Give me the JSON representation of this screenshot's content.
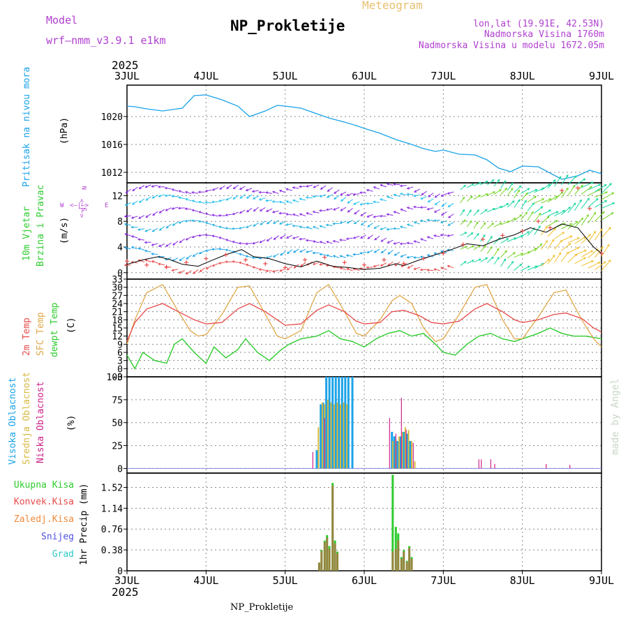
{
  "header": {
    "model_label": "Model",
    "model_name": "wrf–nmm_v3.9.1 e1km",
    "meteogram": "Meteogram",
    "station": "NP_Prokletije",
    "lonlat": "lon,lat (19.91E, 42.53N)",
    "elevation": "Nadmorska Visina 1760m",
    "model_elevation": "Nadmorska Visina u modelu 1672.05m",
    "footer_station": "NP_Prokletije",
    "credit": "made by Angel"
  },
  "time_axis": {
    "year": "2025",
    "day_labels": [
      "3JUL",
      "4JUL",
      "5JUL",
      "6JUL",
      "7JUL",
      "8JUL",
      "9JUL"
    ]
  },
  "panels": {
    "pressure": {
      "label": "Pritisak na nivou mora",
      "unit": "(hPa)"
    },
    "wind": {
      "label1": "10m Vjetar",
      "label2": "Brzina i Pravac",
      "unit": "(m/s)",
      "compass_n": "N",
      "compass_s": "S",
      "compass_w": "W",
      "compass_e": "E",
      "compass_row1": "∧",
      "compass_row2": "<–|–>",
      "compass_row3": "∨"
    },
    "temp": {
      "label1": "2m Temp",
      "label2": "SFC Temp",
      "label3": "dewpt Temp",
      "unit": "(C)"
    },
    "cloud": {
      "label1": "Visoka Oblacnost",
      "label2": "Srednja Oblacnost",
      "label3": "Niska Oblacnost",
      "unit": "(%)"
    },
    "precip": {
      "label1": "Ukupna Kisa",
      "label2": "Konvek.Kisa",
      "label3": "Zaledj.Kisa",
      "label4": "Snijeg",
      "label5": "Grad",
      "unit": "1hr Precip (mm)"
    }
  },
  "colors": {
    "pressure": "#1aa3e8",
    "t2m": "#e84a4a",
    "sfc": "#e0a84a",
    "dewpt": "#2ecc2e",
    "high_cloud": "#1aa3e8",
    "mid_cloud": "#d8b840",
    "low_cloud": "#d0208a",
    "total_rain": "#2ecc2e",
    "conv_rain": "#e84a4a",
    "frz_rain": "#f08a3a",
    "snow": "#5050e0",
    "hail": "#30c8c8",
    "model_label": "#b040d0",
    "meteogram": "#e8c070",
    "wind_label1": "#2ecc2e",
    "wind_label2": "#2ecc2e",
    "wind_unit": "#000000"
  },
  "chart_data": [
    {
      "type": "line",
      "title": "Pritisak na nivou mora",
      "ylabel": "(hPa)",
      "ylim": [
        1010.5,
        1024.5
      ],
      "yticks": [
        1012,
        1016,
        1020
      ],
      "x_days": [
        0,
        0.1,
        0.25,
        0.45,
        0.7,
        0.85,
        1.0,
        1.2,
        1.4,
        1.55,
        1.75,
        1.9,
        2.0,
        2.2,
        2.35,
        2.55,
        2.75,
        2.9,
        3.0,
        3.2,
        3.4,
        3.6,
        3.75,
        3.9,
        4.0,
        4.2,
        4.4,
        4.55,
        4.7,
        4.85,
        5.0,
        5.2,
        5.35,
        5.5,
        5.7,
        5.85,
        6.0
      ],
      "values": [
        1021.5,
        1021.4,
        1021.1,
        1020.8,
        1021.2,
        1023.0,
        1023.1,
        1022.4,
        1021.5,
        1020.0,
        1020.8,
        1021.6,
        1021.5,
        1021.2,
        1020.6,
        1019.8,
        1019.2,
        1018.7,
        1018.3,
        1017.6,
        1016.7,
        1016.0,
        1015.4,
        1015.0,
        1015.2,
        1014.6,
        1014.5,
        1013.8,
        1012.6,
        1012.1,
        1012.9,
        1012.8,
        1011.9,
        1011.0,
        1011.5,
        1012.3,
        1011.8
      ]
    },
    {
      "type": "line",
      "title": "10m Vjetar Brzina i Pravac",
      "ylabel": "(m/s)",
      "ylim": [
        -1,
        14
      ],
      "yticks": [
        0,
        4,
        8,
        12
      ],
      "series": [
        {
          "x_days": [
            0,
            0.2,
            0.4,
            0.55,
            0.7,
            0.9,
            1.05,
            1.25,
            1.45,
            1.6,
            1.8,
            2.0,
            2.2,
            2.4,
            2.6,
            2.8,
            3.0,
            3.2,
            3.4,
            3.5,
            3.7,
            3.9,
            4.1,
            4.3,
            4.5,
            4.7,
            4.9,
            5.1,
            5.3,
            5.5,
            5.7,
            5.9,
            6.0
          ],
          "values": [
            1.3,
            2.0,
            2.5,
            2.0,
            1.3,
            1.0,
            1.8,
            2.8,
            3.6,
            2.5,
            2.2,
            1.4,
            0.9,
            1.8,
            1.0,
            0.8,
            0.5,
            0.7,
            1.4,
            1.1,
            2.0,
            2.8,
            3.6,
            4.5,
            4.2,
            5.2,
            5.9,
            7.0,
            6.3,
            7.6,
            7.0,
            4.0,
            3.0
          ]
        },
        {
          "x_days": [
            0,
            0.25,
            0.5,
            0.75,
            1.0,
            1.25,
            1.5,
            1.75,
            2.0,
            2.25,
            2.5,
            2.75,
            3.0,
            3.25,
            3.5,
            3.75,
            4.0,
            4.25,
            4.5,
            4.75,
            5.0,
            5.2,
            5.35,
            5.5,
            5.7,
            5.85,
            6.0
          ],
          "values": [
            1.8,
            1.2,
            0.9,
            1.6,
            2.2,
            2.8,
            2.0,
            1.4,
            0.8,
            2.0,
            2.4,
            1.6,
            1.2,
            2.0,
            1.4,
            2.2,
            3.0,
            4.4,
            5.2,
            5.8,
            6.5,
            8.0,
            7.0,
            12.8,
            13.2,
            10.0,
            3.0
          ]
        }
      ]
    },
    {
      "type": "line",
      "title": "2m Temp / SFC Temp / dewpt Temp",
      "ylabel": "(C)",
      "ylim": [
        -3,
        33
      ],
      "yticks": [
        -3,
        0,
        3,
        6,
        9,
        12,
        15,
        18,
        21,
        24,
        27,
        30,
        33
      ],
      "series": [
        {
          "name": "2m Temp",
          "x_days": [
            0,
            0.1,
            0.25,
            0.45,
            0.65,
            0.85,
            1.0,
            1.2,
            1.4,
            1.55,
            1.75,
            1.95,
            2.0,
            2.2,
            2.4,
            2.55,
            2.75,
            2.9,
            3.0,
            3.2,
            3.35,
            3.5,
            3.7,
            3.85,
            4.0,
            4.2,
            4.4,
            4.55,
            4.75,
            4.9,
            5.0,
            5.2,
            5.4,
            5.55,
            5.75,
            5.9,
            6.0
          ],
          "values": [
            10,
            17,
            22,
            24,
            21,
            18,
            16.5,
            17,
            22,
            24,
            21,
            17,
            16,
            16.5,
            21.5,
            23.5,
            21,
            17.5,
            16.5,
            17,
            21,
            21.5,
            19.5,
            17,
            16.5,
            17.5,
            22,
            24,
            21,
            18,
            17,
            18,
            20,
            20.5,
            18.5,
            15,
            13.5
          ]
        },
        {
          "name": "SFC Temp",
          "x_days": [
            0,
            0.1,
            0.25,
            0.45,
            0.65,
            0.8,
            0.9,
            1.0,
            1.2,
            1.4,
            1.55,
            1.75,
            1.9,
            2.0,
            2.2,
            2.4,
            2.55,
            2.75,
            2.9,
            3.0,
            3.2,
            3.35,
            3.45,
            3.6,
            3.75,
            3.9,
            4.0,
            4.2,
            4.4,
            4.55,
            4.75,
            4.9,
            5.0,
            5.2,
            5.4,
            5.55,
            5.75,
            5.9,
            6.0
          ],
          "values": [
            9,
            18,
            28,
            31,
            21,
            14,
            12,
            12.5,
            20,
            30,
            30.5,
            20,
            12,
            11,
            14,
            28,
            31,
            21,
            13,
            12,
            18,
            25,
            27,
            24,
            15,
            10,
            11,
            20,
            30,
            31,
            18,
            11,
            11,
            19,
            28,
            29,
            18,
            11,
            8
          ]
        },
        {
          "name": "dewpt Temp",
          "x_days": [
            0,
            0.1,
            0.2,
            0.35,
            0.5,
            0.6,
            0.7,
            0.85,
            1.0,
            1.1,
            1.25,
            1.4,
            1.5,
            1.65,
            1.8,
            1.95,
            2.05,
            2.2,
            2.4,
            2.55,
            2.7,
            2.85,
            3.0,
            3.15,
            3.3,
            3.45,
            3.6,
            3.75,
            3.9,
            4.0,
            4.15,
            4.3,
            4.45,
            4.6,
            4.75,
            4.9,
            5.0,
            5.2,
            5.35,
            5.5,
            5.65,
            5.8,
            6.0
          ],
          "values": [
            5,
            0,
            6,
            3,
            2,
            9,
            11,
            6,
            2,
            8,
            4,
            7,
            11,
            6,
            3,
            7,
            9,
            11,
            12,
            14,
            11,
            10,
            8,
            11,
            13,
            14,
            12,
            13,
            9,
            6,
            5,
            9,
            12,
            13,
            11,
            10,
            11,
            13,
            15,
            13,
            12,
            12,
            11
          ]
        }
      ]
    },
    {
      "type": "bar",
      "title": "Visoka / Srednja / Niska Oblacnost",
      "ylabel": "(%)",
      "ylim": [
        -5,
        100
      ],
      "yticks": [
        0,
        25,
        50,
        75,
        100
      ],
      "series": [
        {
          "name": "Visoka Oblacnost",
          "x_days": [
            2.4,
            2.45,
            2.48,
            2.52,
            2.56,
            2.6,
            2.64,
            2.68,
            2.72,
            2.76,
            2.8,
            2.85,
            3.35,
            3.38,
            3.42,
            3.46,
            3.5,
            3.54,
            3.58
          ],
          "values": [
            20,
            70,
            72,
            100,
            100,
            100,
            100,
            100,
            100,
            100,
            100,
            100,
            40,
            35,
            30,
            35,
            40,
            38,
            30
          ]
        },
        {
          "name": "Srednja Oblacnost",
          "x_days": [
            2.42,
            2.47,
            2.5,
            2.54,
            2.58,
            2.62,
            2.66,
            2.7,
            2.74,
            2.78,
            3.36,
            3.4,
            3.44,
            3.48,
            3.52,
            3.56,
            3.6,
            3.64
          ],
          "values": [
            45,
            72,
            70,
            75,
            72,
            70,
            72,
            70,
            72,
            70,
            30,
            32,
            35,
            40,
            45,
            42,
            30,
            8
          ]
        },
        {
          "name": "Niska Oblacnost",
          "x_days": [
            2.35,
            2.5,
            3.32,
            3.4,
            3.47,
            3.53,
            3.62,
            4.45,
            4.48,
            4.6,
            4.65,
            5.3,
            5.6
          ],
          "values": [
            18,
            55,
            55,
            38,
            77,
            42,
            28,
            10,
            10,
            10,
            5,
            5,
            4
          ]
        }
      ]
    },
    {
      "type": "bar",
      "title": "1hr Precip",
      "ylabel": "1hr Precip (mm)",
      "ylim": [
        0,
        1.78
      ],
      "yticks": [
        0,
        0.38,
        0.76,
        1.14,
        1.52
      ],
      "series": [
        {
          "name": "Ukupna Kisa",
          "x_days": [
            2.43,
            2.46,
            2.5,
            2.53,
            2.56,
            2.6,
            2.63,
            2.66,
            3.36,
            3.4,
            3.43,
            3.47,
            3.5,
            3.54,
            3.57,
            3.6
          ],
          "values": [
            0.15,
            0.38,
            0.55,
            0.65,
            0.45,
            1.6,
            0.55,
            0.35,
            1.75,
            0.8,
            0.68,
            0.25,
            0.38,
            0.18,
            0.45,
            0.25
          ]
        },
        {
          "name": "Konvek.Kisa",
          "x_days": [
            2.43,
            2.46,
            2.5,
            2.53,
            2.56,
            2.6,
            2.63,
            2.66,
            3.36,
            3.4,
            3.43,
            3.47,
            3.5,
            3.54,
            3.57,
            3.6
          ],
          "values": [
            0.15,
            0.36,
            0.52,
            0.6,
            0.4,
            1.55,
            0.5,
            0.32,
            0.35,
            0.4,
            0.55,
            0.22,
            0.35,
            0.16,
            0.42,
            0.22
          ]
        }
      ]
    }
  ]
}
